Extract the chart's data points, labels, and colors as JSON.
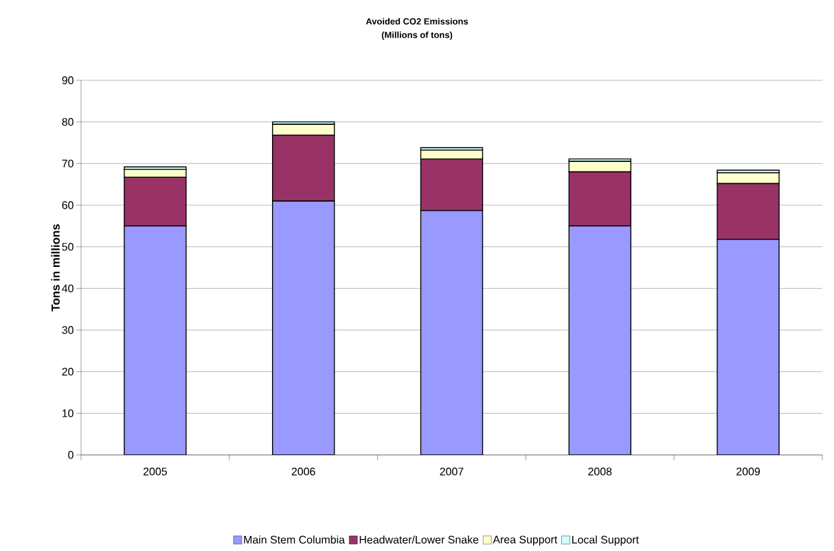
{
  "chart_data": {
    "type": "bar",
    "stacked": true,
    "title": "Avoided CO2 Emissions",
    "subtitle": "(Millions of tons)",
    "ylabel": "Tons in millions",
    "categories": [
      "2005",
      "2006",
      "2007",
      "2008",
      "2009"
    ],
    "series": [
      {
        "name": "Main Stem Columbia",
        "color": "#9999ff",
        "values": [
          55,
          61,
          58.7,
          55,
          51.8
        ]
      },
      {
        "name": "Headwater/Lower Snake",
        "color": "#993366",
        "values": [
          11.7,
          15.8,
          12.4,
          13,
          13.4
        ]
      },
      {
        "name": "Area Support",
        "color": "#ffffcc",
        "values": [
          1.9,
          2.6,
          2.1,
          2.5,
          2.6
        ]
      },
      {
        "name": "Local Support",
        "color": "#ccffff",
        "values": [
          0.6,
          0.6,
          0.6,
          0.6,
          0.6
        ]
      }
    ],
    "ylim": [
      0,
      90
    ],
    "yticks": [
      0,
      10,
      20,
      30,
      40,
      50,
      60,
      70,
      80,
      90
    ],
    "grid": "y",
    "legend": "bottom"
  }
}
